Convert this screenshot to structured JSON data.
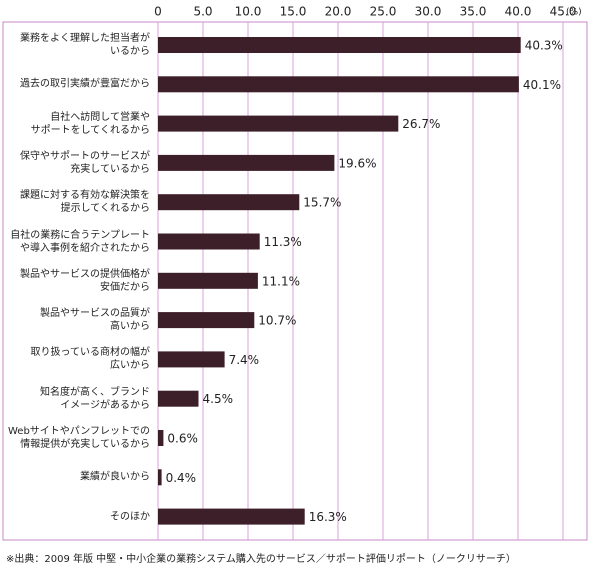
{
  "chart_data": {
    "type": "bar",
    "orientation": "horizontal",
    "unit_label": "(%)",
    "categories": [
      "業務をよく理解した担当者が\nいるから",
      "過去の取引実績が豊富だから",
      "自社へ訪問して営業や\nサポートをしてくれるから",
      "保守やサポートのサービスが\n充実しているから",
      "課題に対する有効な解決策を\n提示してくれるから",
      "自社の業務に合うテンプレート\nや導入事例を紹介されたから",
      "製品やサービスの提供価格が\n安価だから",
      "製品やサービスの品質が\n高いから",
      "取り扱っている商材の幅が\n広いから",
      "知名度が高く、ブランド\nイメージがあるから",
      "Webサイトやパンフレットでの\n情報提供が充実しているから",
      "業績が良いから",
      "そのほか"
    ],
    "values": [
      40.3,
      40.1,
      26.7,
      19.6,
      15.7,
      11.3,
      11.1,
      10.7,
      7.4,
      4.5,
      0.6,
      0.4,
      16.3
    ],
    "value_labels": [
      "40.3%",
      "40.1%",
      "26.7%",
      "19.6%",
      "15.7%",
      "11.3%",
      "11.1%",
      "10.7%",
      "7.4%",
      "4.5%",
      "0.6%",
      "0.4%",
      "16.3%"
    ],
    "color": "#3d1f2a",
    "xlim": [
      0,
      45
    ],
    "xticks": [
      0,
      {
        "value": 5,
        "label": "5.0"
      },
      {
        "value": 10,
        "label": "10.0"
      },
      {
        "value": 15,
        "label": "15.0"
      },
      {
        "value": 20,
        "label": "20.0"
      },
      {
        "value": 25,
        "label": "25.0"
      },
      {
        "value": 30,
        "label": "30.0"
      },
      {
        "value": 35,
        "label": "35.0"
      },
      {
        "value": 40,
        "label": "40.0"
      },
      {
        "value": 45,
        "label": "45.0"
      }
    ],
    "grid": true,
    "source": "※出典：2009 年版 中堅・中小企業の業務システム購入先のサービス／サポート評価リポート（ノークリサーチ）"
  }
}
